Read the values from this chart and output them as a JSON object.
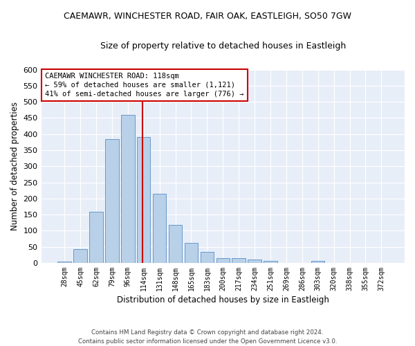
{
  "title": "CAEMAWR, WINCHESTER ROAD, FAIR OAK, EASTLEIGH, SO50 7GW",
  "subtitle": "Size of property relative to detached houses in Eastleigh",
  "xlabel": "Distribution of detached houses by size in Eastleigh",
  "ylabel": "Number of detached properties",
  "bar_color": "#b8d0e8",
  "bar_edge_color": "#6699cc",
  "background_color": "#e8eef8",
  "grid_color": "#ffffff",
  "bin_labels": [
    "28sqm",
    "45sqm",
    "62sqm",
    "79sqm",
    "96sqm",
    "114sqm",
    "131sqm",
    "148sqm",
    "165sqm",
    "183sqm",
    "200sqm",
    "217sqm",
    "234sqm",
    "251sqm",
    "269sqm",
    "286sqm",
    "303sqm",
    "320sqm",
    "338sqm",
    "355sqm",
    "372sqm"
  ],
  "bar_heights": [
    5,
    42,
    158,
    385,
    460,
    390,
    215,
    118,
    63,
    35,
    15,
    15,
    10,
    7,
    0,
    0,
    7,
    0,
    0,
    0,
    0
  ],
  "vline_index": 5,
  "vline_color": "#cc0000",
  "ylim": [
    0,
    600
  ],
  "yticks": [
    0,
    50,
    100,
    150,
    200,
    250,
    300,
    350,
    400,
    450,
    500,
    550,
    600
  ],
  "annotation_text": "CAEMAWR WINCHESTER ROAD: 118sqm\n← 59% of detached houses are smaller (1,121)\n41% of semi-detached houses are larger (776) →",
  "annotation_box_color": "#ffffff",
  "annotation_box_edge": "#cc0000",
  "footer_line1": "Contains HM Land Registry data © Crown copyright and database right 2024.",
  "footer_line2": "Contains public sector information licensed under the Open Government Licence v3.0."
}
